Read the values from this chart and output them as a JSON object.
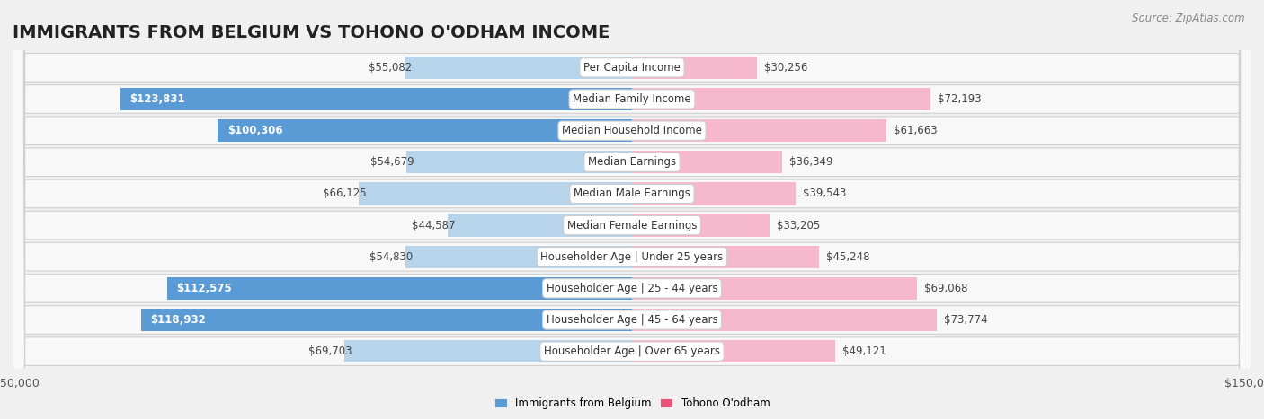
{
  "title": "IMMIGRANTS FROM BELGIUM VS TOHONO O'ODHAM INCOME",
  "source": "Source: ZipAtlas.com",
  "categories": [
    "Per Capita Income",
    "Median Family Income",
    "Median Household Income",
    "Median Earnings",
    "Median Male Earnings",
    "Median Female Earnings",
    "Householder Age | Under 25 years",
    "Householder Age | 25 - 44 years",
    "Householder Age | 45 - 64 years",
    "Householder Age | Over 65 years"
  ],
  "left_values": [
    55082,
    123831,
    100306,
    54679,
    66125,
    44587,
    54830,
    112575,
    118932,
    69703
  ],
  "right_values": [
    30256,
    72193,
    61663,
    36349,
    39543,
    33205,
    45248,
    69068,
    73774,
    49121
  ],
  "left_labels": [
    "$55,082",
    "$123,831",
    "$100,306",
    "$54,679",
    "$66,125",
    "$44,587",
    "$54,830",
    "$112,575",
    "$118,932",
    "$69,703"
  ],
  "right_labels": [
    "$30,256",
    "$72,193",
    "$61,663",
    "$36,349",
    "$39,543",
    "$33,205",
    "$45,248",
    "$69,068",
    "$73,774",
    "$49,121"
  ],
  "left_color_light": "#b8d4ea",
  "left_color_dark": "#5b9bd5",
  "right_color_light": "#f5b8cc",
  "right_color_dark": "#e8537a",
  "large_threshold": 80000,
  "xlim": 150000,
  "background_color": "#f0f0f0",
  "row_bg_color": "#f8f8f8",
  "row_border_color": "#d0d0d0",
  "legend_left": "Immigrants from Belgium",
  "legend_right": "Tohono O'odham",
  "title_fontsize": 14,
  "label_fontsize": 8.5,
  "category_fontsize": 8.5,
  "tick_fontsize": 9,
  "source_fontsize": 8.5
}
